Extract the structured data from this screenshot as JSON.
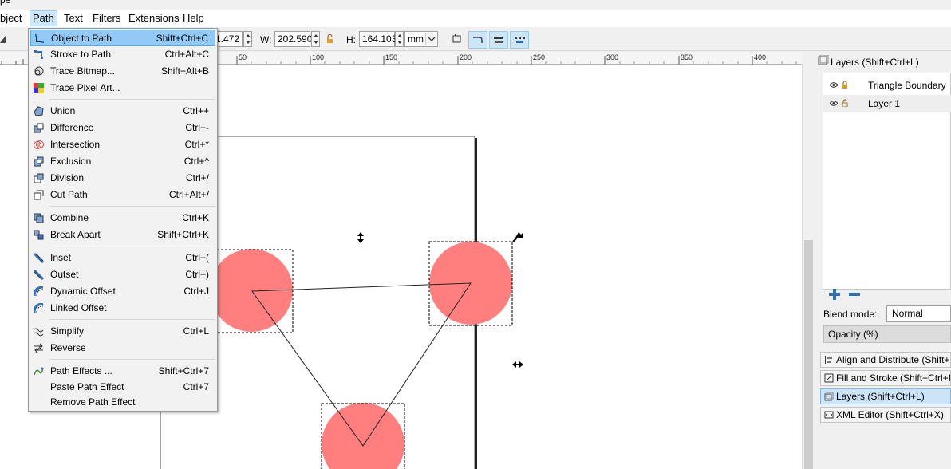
{
  "title_fragment": "pe",
  "menubar": {
    "items": [
      {
        "label": "bject",
        "key": "object"
      },
      {
        "label": "Path",
        "key": "path"
      },
      {
        "label": "Text",
        "key": "text"
      },
      {
        "label": "Filters",
        "key": "filters"
      },
      {
        "label": "Extensions",
        "key": "extensions"
      },
      {
        "label": "Help",
        "key": "help"
      }
    ]
  },
  "toolbar": {
    "x_value": "1.472",
    "w_label": "W:",
    "w_value": "202.590",
    "h_label": "H:",
    "h_value": "164.103",
    "unit": "mm"
  },
  "ruler": {
    "labels": [
      "50",
      "100",
      "150",
      "200",
      "250",
      "300",
      "350",
      "400"
    ]
  },
  "path_menu": {
    "items": [
      {
        "label": "Object to Path",
        "accel": "Shift+Ctrl+C",
        "icon": "object-to-path-icon"
      },
      {
        "label": "Stroke to Path",
        "accel": "Ctrl+Alt+C",
        "icon": "stroke-to-path-icon"
      },
      {
        "label": "Trace Bitmap...",
        "accel": "Shift+Alt+B",
        "icon": "trace-bitmap-icon"
      },
      {
        "label": "Trace Pixel Art...",
        "accel": "",
        "icon": "trace-pixel-art-icon"
      },
      {
        "label": "Union",
        "accel": "Ctrl++",
        "icon": "union-icon"
      },
      {
        "label": "Difference",
        "accel": "Ctrl+-",
        "icon": "difference-icon"
      },
      {
        "label": "Intersection",
        "accel": "Ctrl+*",
        "icon": "intersection-icon"
      },
      {
        "label": "Exclusion",
        "accel": "Ctrl+^",
        "icon": "exclusion-icon"
      },
      {
        "label": "Division",
        "accel": "Ctrl+/",
        "icon": "division-icon"
      },
      {
        "label": "Cut Path",
        "accel": "Ctrl+Alt+/",
        "icon": "cut-path-icon"
      },
      {
        "label": "Combine",
        "accel": "Ctrl+K",
        "icon": "combine-icon"
      },
      {
        "label": "Break Apart",
        "accel": "Shift+Ctrl+K",
        "icon": "break-apart-icon"
      },
      {
        "label": "Inset",
        "accel": "Ctrl+(",
        "icon": "inset-icon"
      },
      {
        "label": "Outset",
        "accel": "Ctrl+)",
        "icon": "outset-icon"
      },
      {
        "label": "Dynamic Offset",
        "accel": "Ctrl+J",
        "icon": "dynamic-offset-icon"
      },
      {
        "label": "Linked Offset",
        "accel": "",
        "icon": "linked-offset-icon"
      },
      {
        "label": "Simplify",
        "accel": "Ctrl+L",
        "icon": "simplify-icon"
      },
      {
        "label": "Reverse",
        "accel": "",
        "icon": "reverse-icon"
      },
      {
        "label": "Path Effects ...",
        "accel": "Shift+Ctrl+7",
        "icon": "path-effects-icon"
      },
      {
        "label": "Paste Path Effect",
        "accel": "Ctrl+7",
        "icon": ""
      },
      {
        "label": "Remove Path Effect",
        "accel": "",
        "icon": ""
      }
    ]
  },
  "dock": {
    "header": "Layers (Shift+Ctrl+L)",
    "layers": [
      {
        "name": "Triangle Boundary"
      },
      {
        "name": "Layer 1"
      }
    ],
    "blend_label": "Blend mode:",
    "blend_value": "Normal",
    "opacity_label": "Opacity (%)",
    "tabs": [
      {
        "label": "Align and Distribute (Shift+"
      },
      {
        "label": "Fill and Stroke (Shift+Ctrl+F"
      },
      {
        "label": "Layers (Shift+Ctrl+L)"
      },
      {
        "label": "XML Editor (Shift+Ctrl+X)"
      }
    ]
  },
  "colors": {
    "circle_fill": "#ff7f7f",
    "menu_highlight": "#91c9f7",
    "selected_tab": "#cce4f7"
  }
}
